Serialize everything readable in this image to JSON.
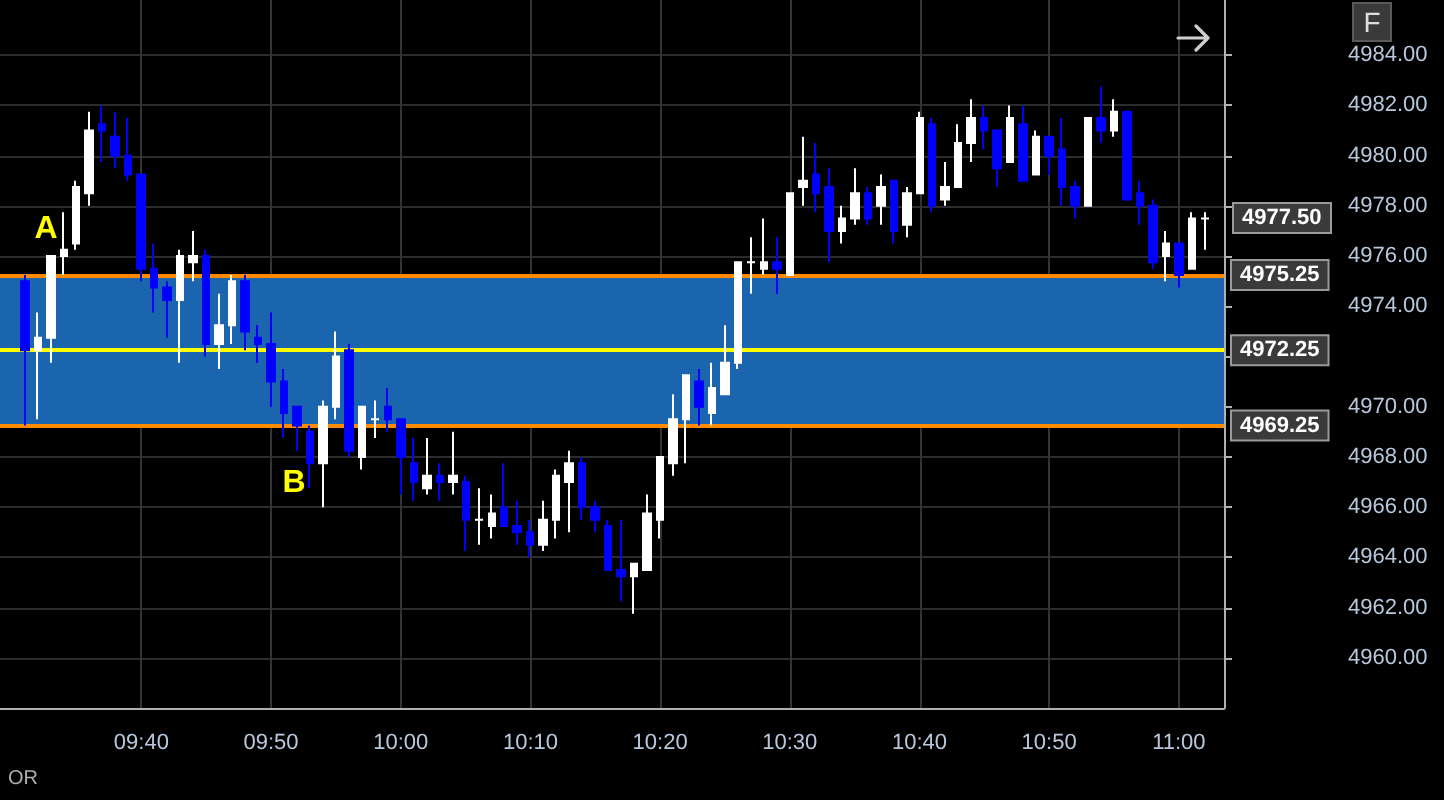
{
  "chart_data": {
    "type": "candlestick",
    "x": [
      9.5167,
      9.5333,
      9.55,
      9.5667,
      9.5833,
      9.6,
      9.6167,
      9.6333,
      9.65,
      9.6667,
      9.6833,
      9.7,
      9.7167,
      9.7333,
      9.75,
      9.7667,
      9.7833,
      9.8,
      9.8167,
      9.8333,
      9.85,
      9.8667,
      9.8833,
      9.9,
      9.9167,
      9.9333,
      9.95,
      9.9667,
      9.9833,
      10,
      10.0167,
      10.0333,
      10.05,
      10.0667,
      10.0833,
      10.1,
      10.1167,
      10.1333,
      10.15,
      10.1667,
      10.1833,
      10.2,
      10.2167,
      10.2333,
      10.25,
      10.2667,
      10.2833,
      10.3,
      10.3167,
      10.3333,
      10.35,
      10.3667,
      10.3833,
      10.4,
      10.4167,
      10.4333,
      10.45,
      10.4667,
      10.4833,
      10.5,
      10.5167,
      10.5333,
      10.55,
      10.5667,
      10.5833,
      10.6,
      10.6167,
      10.6333,
      10.65,
      10.6667,
      10.6833,
      10.7,
      10.7167,
      10.7333,
      10.75,
      10.7667,
      10.7833,
      10.8,
      10.8167,
      10.8333,
      10.85,
      10.8667,
      10.8833,
      10.9,
      10.9167,
      10.9333,
      10.95,
      10.9667,
      10.9833,
      11,
      11.0167,
      11.0333
    ],
    "ohlc": [
      [
        4975,
        4975.25,
        4969.25,
        4972.25
      ],
      [
        4972.25,
        4973.75,
        4969.5,
        4972.75
      ],
      [
        4972.75,
        4976,
        4971.75,
        4976
      ],
      [
        4976,
        4977.75,
        4975.25,
        4976.25
      ],
      [
        4976.5,
        4979,
        4976.25,
        4978.75
      ],
      [
        4978.5,
        4981.75,
        4978,
        4981
      ],
      [
        4981.25,
        4982,
        4979.75,
        4981
      ],
      [
        4980.75,
        4981.75,
        4979.5,
        4980
      ],
      [
        4980,
        4981.5,
        4979,
        4979.25
      ],
      [
        4979.25,
        4979.25,
        4975,
        4975.5
      ],
      [
        4975.5,
        4976.5,
        4973.75,
        4974.75
      ],
      [
        4974.75,
        4975,
        4972.75,
        4974.25
      ],
      [
        4974.25,
        4976.25,
        4971.75,
        4976
      ],
      [
        4975.75,
        4977,
        4975,
        4976
      ],
      [
        4976,
        4976.25,
        4972,
        4972.5
      ],
      [
        4972.5,
        4974.5,
        4971.5,
        4973.25
      ],
      [
        4973.25,
        4975.25,
        4972.5,
        4975
      ],
      [
        4975,
        4975.25,
        4972.25,
        4973
      ],
      [
        4972.75,
        4973.25,
        4971.75,
        4972.5
      ],
      [
        4972.5,
        4973.75,
        4970,
        4971
      ],
      [
        4971,
        4971.5,
        4968.75,
        4969.75
      ],
      [
        4970,
        4970,
        4968.25,
        4969.25
      ],
      [
        4969,
        4969.25,
        4966.75,
        4967.75
      ],
      [
        4967.75,
        4970.25,
        4966,
        4970
      ],
      [
        4970,
        4973,
        4969.5,
        4972
      ],
      [
        4972.25,
        4972.5,
        4968,
        4968.25
      ],
      [
        4968,
        4970,
        4967.5,
        4970
      ],
      [
        4969.5,
        4970.25,
        4968.75,
        4969.5
      ],
      [
        4970,
        4970.75,
        4969,
        4969.5
      ],
      [
        4969.5,
        4969.5,
        4966.5,
        4968
      ],
      [
        4967.75,
        4968.75,
        4966.25,
        4967
      ],
      [
        4966.75,
        4968.75,
        4966.5,
        4967.25
      ],
      [
        4967.25,
        4967.75,
        4966.25,
        4967
      ],
      [
        4967,
        4969,
        4966.5,
        4967.25
      ],
      [
        4967,
        4967.25,
        4964.25,
        4965.5
      ],
      [
        4965.5,
        4966.75,
        4964.5,
        4965.5
      ],
      [
        4965.25,
        4966.5,
        4964.75,
        4965.75
      ],
      [
        4966,
        4967.75,
        4965.25,
        4965.25
      ],
      [
        4965.25,
        4966.25,
        4964.5,
        4965
      ],
      [
        4965,
        4965.5,
        4964,
        4964.5
      ],
      [
        4964.5,
        4966.25,
        4964.25,
        4965.5
      ],
      [
        4965.5,
        4967.5,
        4964.75,
        4967.25
      ],
      [
        4967,
        4968.25,
        4965,
        4967.75
      ],
      [
        4967.75,
        4968,
        4965.5,
        4966
      ],
      [
        4966,
        4966.25,
        4965,
        4965.5
      ],
      [
        4965.25,
        4965.5,
        4963.5,
        4963.5
      ],
      [
        4963.5,
        4965.5,
        4962.25,
        4963.25
      ],
      [
        4963.25,
        4963.75,
        4961.75,
        4963.75
      ],
      [
        4963.5,
        4966.5,
        4963.5,
        4965.75
      ],
      [
        4965.5,
        4968,
        4964.75,
        4968
      ],
      [
        4967.75,
        4970.5,
        4967.25,
        4969.5
      ],
      [
        4969.5,
        4971.25,
        4967.75,
        4971.25
      ],
      [
        4971,
        4971.5,
        4969.25,
        4970
      ],
      [
        4969.75,
        4971.75,
        4969.25,
        4970.75
      ],
      [
        4970.5,
        4973.25,
        4970.5,
        4971.75
      ],
      [
        4971.75,
        4975.75,
        4971.5,
        4975.75
      ],
      [
        4975.75,
        4976.75,
        4974.5,
        4975.75
      ],
      [
        4975.5,
        4977.5,
        4975.25,
        4975.75
      ],
      [
        4975.75,
        4976.75,
        4974.5,
        4975.5
      ],
      [
        4975.25,
        4978.5,
        4975.25,
        4978.5
      ],
      [
        4978.75,
        4980.75,
        4978,
        4979
      ],
      [
        4979.25,
        4980.5,
        4977.75,
        4978.5
      ],
      [
        4978.75,
        4979.5,
        4975.75,
        4977
      ],
      [
        4977,
        4978,
        4976.5,
        4977.5
      ],
      [
        4977.5,
        4979.5,
        4977.25,
        4978.5
      ],
      [
        4978.5,
        4978.75,
        4977.25,
        4977.5
      ],
      [
        4978,
        4979.25,
        4977.25,
        4978.75
      ],
      [
        4979,
        4979,
        4976.5,
        4977
      ],
      [
        4977.25,
        4978.75,
        4976.75,
        4978.5
      ],
      [
        4978.5,
        4981.75,
        4978.5,
        4981.5
      ],
      [
        4981.25,
        4981.5,
        4977.75,
        4978
      ],
      [
        4978.25,
        4979.75,
        4978,
        4978.75
      ],
      [
        4978.75,
        4981.25,
        4978.75,
        4980.5
      ],
      [
        4980.5,
        4982.25,
        4979.75,
        4981.5
      ],
      [
        4981.5,
        4982,
        4980.25,
        4981
      ],
      [
        4981,
        4981,
        4978.75,
        4979.5
      ],
      [
        4979.75,
        4982,
        4979.75,
        4981.5
      ],
      [
        4981.25,
        4982,
        4979,
        4979
      ],
      [
        4979.25,
        4981,
        4979.25,
        4980.75
      ],
      [
        4980.75,
        4980.75,
        4979.25,
        4980
      ],
      [
        4980.25,
        4981.5,
        4978,
        4978.75
      ],
      [
        4978.75,
        4979,
        4977.5,
        4978
      ],
      [
        4978,
        4981.5,
        4978,
        4981.5
      ],
      [
        4981.5,
        4982.75,
        4980.5,
        4981
      ],
      [
        4981,
        4982.25,
        4980.75,
        4981.75
      ],
      [
        4981.75,
        4981.75,
        4978.25,
        4978.25
      ],
      [
        4978.5,
        4979,
        4977.25,
        4978
      ],
      [
        4978,
        4978.25,
        4975.5,
        4975.75
      ],
      [
        4976,
        4977,
        4975,
        4976.5
      ],
      [
        4976.5,
        4976.5,
        4974.75,
        4975.25
      ],
      [
        4975.5,
        4977.75,
        4975.5,
        4977.5
      ],
      [
        4977.5,
        4977.75,
        4976.25,
        4977.5
      ]
    ],
    "colors": [
      "#0000ff",
      "#ffffff",
      "#ffffff",
      "#ffffff",
      "#ffffff",
      "#ffffff",
      "#0000ff",
      "#0000ff",
      "#0000ff",
      "#0000ff",
      "#0000ff",
      "#0000ff",
      "#ffffff",
      "#ffffff",
      "#0000ff",
      "#ffffff",
      "#ffffff",
      "#0000ff",
      "#0000ff",
      "#0000ff",
      "#0000ff",
      "#0000ff",
      "#0000ff",
      "#ffffff",
      "#ffffff",
      "#0000ff",
      "#ffffff",
      "#ffffff",
      "#0000ff",
      "#0000ff",
      "#0000ff",
      "#ffffff",
      "#0000ff",
      "#ffffff",
      "#0000ff",
      "#ffffff",
      "#ffffff",
      "#0000ff",
      "#0000ff",
      "#0000ff",
      "#ffffff",
      "#ffffff",
      "#ffffff",
      "#0000ff",
      "#0000ff",
      "#0000ff",
      "#0000ff",
      "#ffffff",
      "#ffffff",
      "#ffffff",
      "#ffffff",
      "#ffffff",
      "#0000ff",
      "#ffffff",
      "#ffffff",
      "#ffffff",
      "#ffffff",
      "#ffffff",
      "#0000ff",
      "#ffffff",
      "#ffffff",
      "#0000ff",
      "#0000ff",
      "#ffffff",
      "#ffffff",
      "#0000ff",
      "#ffffff",
      "#0000ff",
      "#ffffff",
      "#ffffff",
      "#0000ff",
      "#ffffff",
      "#ffffff",
      "#ffffff",
      "#0000ff",
      "#0000ff",
      "#ffffff",
      "#0000ff",
      "#ffffff",
      "#0000ff",
      "#0000ff",
      "#0000ff",
      "#ffffff",
      "#0000ff",
      "#ffffff",
      "#0000ff",
      "#0000ff",
      "#0000ff",
      "#ffffff",
      "#0000ff",
      "#ffffff",
      "#ffffff"
    ],
    "xlim": [
      9.485,
      11.058
    ],
    "xticks": [
      {
        "value": 9.6667,
        "label": "09:40"
      },
      {
        "value": 9.8333,
        "label": "09:50"
      },
      {
        "value": 10,
        "label": "10:00"
      },
      {
        "value": 10.1667,
        "label": "10:10"
      },
      {
        "value": 10.3333,
        "label": "10:20"
      },
      {
        "value": 10.5,
        "label": "10:30"
      },
      {
        "value": 10.6667,
        "label": "10:40"
      },
      {
        "value": 10.8333,
        "label": "10:50"
      },
      {
        "value": 11,
        "label": "11:00"
      }
    ],
    "ylim": [
      4958,
      4986.2
    ],
    "yticks": [
      {
        "value": 4960,
        "label": "4960.00"
      },
      {
        "value": 4962,
        "label": "4962.00"
      },
      {
        "value": 4964,
        "label": "4964.00"
      },
      {
        "value": 4966,
        "label": "4966.00"
      },
      {
        "value": 4968,
        "label": "4968.00"
      },
      {
        "value": 4970,
        "label": "4970.00"
      },
      {
        "value": 4972,
        "label": null
      },
      {
        "value": 4974,
        "label": "4974.00"
      },
      {
        "value": 4976,
        "label": "4976.00"
      },
      {
        "value": 4978,
        "label": "4978.00"
      },
      {
        "value": 4980,
        "label": "4980.00"
      },
      {
        "value": 4982,
        "label": "4982.00"
      },
      {
        "value": 4984,
        "label": "4984.00"
      }
    ],
    "grid": true,
    "bands": [
      {
        "axis": "y",
        "from": 4969.25,
        "to": 4975.25,
        "color": "#1b64ae"
      }
    ],
    "ref_lines": [
      {
        "axis": "y",
        "value": 4975.25,
        "label": "4975.25",
        "color": "#ff8c00"
      },
      {
        "axis": "y",
        "value": 4972.25,
        "label": "4972.25",
        "color": "#ffff00"
      },
      {
        "axis": "y",
        "value": 4969.25,
        "label": "4969.25",
        "color": "#ff8c00"
      }
    ],
    "annotations": [
      "OR",
      "F",
      "A",
      "B",
      "4977.50"
    ]
  }
}
